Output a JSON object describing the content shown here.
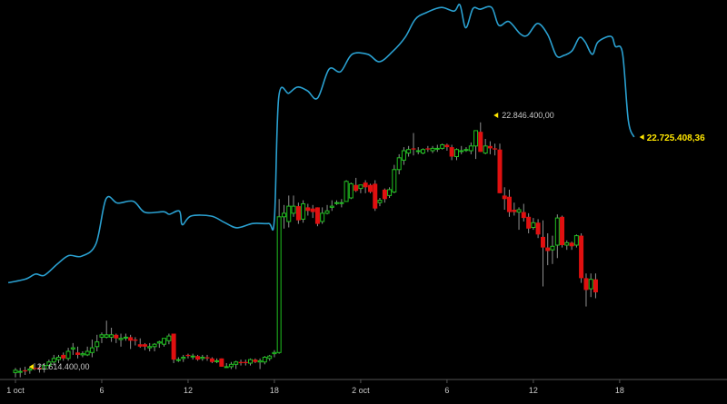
{
  "chart_data": {
    "type": "candlestick",
    "title": "",
    "xlabel": "",
    "ylabel": "",
    "grid": false,
    "legend": "none",
    "x_ticks": [
      "1 oct",
      "6",
      "12",
      "18",
      "2 oct",
      "6",
      "12",
      "18"
    ],
    "x_tick_hours": [
      0,
      6,
      12,
      18,
      24,
      30,
      36,
      42
    ],
    "annotations": [
      {
        "label": "21.614.400,00",
        "kind": "min",
        "hour": 0.5
      },
      {
        "label": "22.846.400,00",
        "kind": "max",
        "hour": 32.8
      }
    ],
    "last_value_label": "22.725.408,36",
    "colors": {
      "background": "#000000",
      "up": "#20c020",
      "down": "#e01010",
      "wick": "#909090",
      "line": "#2aa0d0",
      "label": "#c8c8c8",
      "last_label": "#ffe600",
      "marker": "#ffe600"
    },
    "series": [
      {
        "type": "line",
        "values": [
          [
            -0.5,
            0.42
          ],
          [
            0.7,
            0.48
          ],
          [
            1.4,
            0.56
          ],
          [
            2.0,
            0.54
          ],
          [
            2.9,
            0.72
          ],
          [
            3.7,
            0.86
          ],
          [
            4.6,
            0.85
          ],
          [
            5.6,
            1.05
          ],
          [
            6.3,
            1.78
          ],
          [
            7.1,
            1.71
          ],
          [
            8.2,
            1.74
          ],
          [
            9.0,
            1.56
          ],
          [
            10.3,
            1.57
          ],
          [
            10.7,
            1.53
          ],
          [
            11.4,
            1.58
          ],
          [
            11.6,
            1.36
          ],
          [
            12.2,
            1.5
          ],
          [
            13.6,
            1.5
          ],
          [
            14.5,
            1.4
          ],
          [
            15.4,
            1.31
          ],
          [
            16.5,
            1.38
          ],
          [
            17.6,
            1.38
          ],
          [
            18.0,
            1.44
          ],
          [
            18.3,
            3.42
          ],
          [
            19.0,
            3.49
          ],
          [
            19.6,
            3.59
          ],
          [
            20.3,
            3.53
          ],
          [
            21.0,
            3.41
          ],
          [
            21.8,
            3.88
          ],
          [
            22.6,
            3.84
          ],
          [
            23.4,
            4.12
          ],
          [
            24.5,
            4.12
          ],
          [
            25.3,
            4.0
          ],
          [
            26.2,
            4.16
          ],
          [
            27.1,
            4.4
          ],
          [
            27.8,
            4.69
          ],
          [
            28.6,
            4.8
          ],
          [
            29.6,
            4.88
          ],
          [
            30.5,
            4.82
          ],
          [
            30.9,
            4.92
          ],
          [
            31.3,
            4.55
          ],
          [
            31.8,
            4.86
          ],
          [
            32.3,
            4.85
          ],
          [
            33.1,
            4.88
          ],
          [
            33.6,
            4.59
          ],
          [
            34.3,
            4.65
          ],
          [
            35.1,
            4.45
          ],
          [
            35.6,
            4.43
          ],
          [
            36.3,
            4.62
          ],
          [
            37.0,
            4.44
          ],
          [
            37.6,
            4.1
          ],
          [
            38.1,
            4.1
          ],
          [
            38.7,
            4.18
          ],
          [
            39.2,
            4.39
          ],
          [
            39.6,
            4.32
          ],
          [
            40.1,
            4.12
          ],
          [
            40.5,
            4.32
          ],
          [
            41.4,
            4.41
          ],
          [
            41.7,
            4.25
          ],
          [
            42.2,
            4.14
          ],
          [
            42.6,
            3.05
          ],
          [
            43.0,
            2.78
          ]
        ]
      },
      {
        "type": "candlestick",
        "ohlc_columns": [
          "hour",
          "open",
          "high",
          "low",
          "close"
        ],
        "values": [
          [
            0.0,
            -0.08,
            -0.04,
            -0.12,
            -0.06
          ],
          [
            0.33,
            -0.07,
            -0.04,
            -0.12,
            -0.07
          ],
          [
            0.67,
            -0.06,
            -0.03,
            -0.1,
            -0.07
          ],
          [
            1.0,
            -0.06,
            -0.03,
            -0.09,
            -0.05
          ],
          [
            1.33,
            -0.04,
            0.0,
            -0.06,
            -0.05
          ],
          [
            1.67,
            -0.04,
            -0.01,
            -0.08,
            -0.05
          ],
          [
            2.0,
            -0.05,
            0.0,
            -0.08,
            -0.02
          ],
          [
            2.33,
            -0.02,
            0.03,
            -0.05,
            0.01
          ],
          [
            2.67,
            0.01,
            0.07,
            -0.02,
            0.04
          ],
          [
            3.0,
            0.03,
            0.07,
            0.0,
            0.05
          ],
          [
            3.33,
            0.07,
            0.09,
            0.02,
            0.04
          ],
          [
            3.67,
            0.04,
            0.13,
            0.02,
            0.1
          ],
          [
            4.0,
            0.12,
            0.17,
            0.07,
            0.13
          ],
          [
            4.33,
            0.09,
            0.14,
            0.04,
            0.07
          ],
          [
            4.67,
            0.07,
            0.1,
            0.05,
            0.08
          ],
          [
            5.0,
            0.07,
            0.14,
            0.06,
            0.1
          ],
          [
            5.33,
            0.09,
            0.2,
            0.05,
            0.13
          ],
          [
            5.67,
            0.14,
            0.24,
            0.1,
            0.18
          ],
          [
            6.0,
            0.22,
            0.26,
            0.17,
            0.24
          ],
          [
            6.33,
            0.22,
            0.36,
            0.21,
            0.24
          ],
          [
            6.67,
            0.22,
            0.3,
            0.18,
            0.24
          ],
          [
            7.0,
            0.24,
            0.25,
            0.17,
            0.21
          ],
          [
            7.33,
            0.2,
            0.25,
            0.14,
            0.21
          ],
          [
            7.67,
            0.22,
            0.25,
            0.19,
            0.22
          ],
          [
            8.0,
            0.22,
            0.24,
            0.12,
            0.19
          ],
          [
            8.33,
            0.2,
            0.22,
            0.15,
            0.19
          ],
          [
            8.67,
            0.16,
            0.21,
            0.13,
            0.14
          ],
          [
            9.0,
            0.16,
            0.17,
            0.11,
            0.14
          ],
          [
            9.33,
            0.13,
            0.17,
            0.1,
            0.14
          ],
          [
            9.67,
            0.14,
            0.17,
            0.1,
            0.16
          ],
          [
            10.0,
            0.17,
            0.19,
            0.13,
            0.18
          ],
          [
            10.33,
            0.16,
            0.2,
            0.14,
            0.21
          ],
          [
            10.67,
            0.19,
            0.25,
            0.16,
            0.23
          ],
          [
            11.0,
            0.25,
            0.25,
            0.0,
            0.03
          ],
          [
            11.33,
            0.03,
            0.05,
            0.01,
            0.03
          ],
          [
            11.67,
            0.04,
            0.07,
            0.01,
            0.05
          ],
          [
            12.0,
            0.07,
            0.08,
            0.04,
            0.06
          ],
          [
            12.33,
            0.06,
            0.08,
            0.03,
            0.06
          ],
          [
            12.67,
            0.06,
            0.07,
            0.02,
            0.03
          ],
          [
            13.0,
            0.04,
            0.07,
            0.02,
            0.05
          ],
          [
            13.33,
            0.05,
            0.07,
            0.02,
            0.04
          ],
          [
            13.67,
            0.04,
            0.05,
            0.0,
            0.01
          ],
          [
            14.0,
            0.02,
            0.04,
            0.0,
            0.02
          ],
          [
            14.33,
            0.04,
            0.04,
            -0.03,
            -0.03
          ],
          [
            14.67,
            -0.03,
            0.0,
            -0.03,
            -0.03
          ],
          [
            15.0,
            -0.03,
            0.01,
            -0.05,
            -0.01
          ],
          [
            15.33,
            -0.01,
            0.02,
            -0.05,
            0.01
          ],
          [
            15.67,
            0.01,
            0.03,
            -0.02,
            0.0
          ],
          [
            16.0,
            0.01,
            0.03,
            -0.02,
            0.0
          ],
          [
            16.33,
            0.0,
            0.04,
            -0.02,
            0.03
          ],
          [
            16.67,
            0.03,
            0.04,
            0.0,
            0.01
          ],
          [
            17.0,
            0.01,
            0.04,
            -0.05,
            0.02
          ],
          [
            17.33,
            0.01,
            0.06,
            -0.01,
            0.05
          ],
          [
            17.67,
            0.04,
            0.07,
            0.02,
            0.06
          ],
          [
            18.0,
            0.08,
            0.11,
            0.05,
            0.09
          ],
          [
            18.33,
            0.09,
            1.39,
            0.08,
            1.24
          ],
          [
            18.67,
            1.24,
            1.34,
            1.14,
            1.27
          ],
          [
            19.0,
            1.2,
            1.42,
            1.15,
            1.33
          ],
          [
            19.33,
            1.27,
            1.42,
            1.24,
            1.33
          ],
          [
            19.67,
            1.33,
            1.36,
            1.18,
            1.21
          ],
          [
            20.0,
            1.22,
            1.38,
            1.19,
            1.35
          ],
          [
            20.33,
            1.32,
            1.35,
            1.25,
            1.29
          ],
          [
            20.67,
            1.31,
            1.34,
            1.23,
            1.28
          ],
          [
            21.0,
            1.32,
            1.32,
            1.16,
            1.18
          ],
          [
            21.33,
            1.2,
            1.32,
            1.18,
            1.27
          ],
          [
            21.67,
            1.27,
            1.34,
            1.26,
            1.29
          ],
          [
            22.0,
            1.32,
            1.38,
            1.29,
            1.33
          ],
          [
            22.33,
            1.36,
            1.38,
            1.34,
            1.36
          ],
          [
            22.67,
            1.36,
            1.39,
            1.32,
            1.36
          ],
          [
            23.0,
            1.37,
            1.55,
            1.37,
            1.54
          ],
          [
            23.33,
            1.4,
            1.53,
            1.39,
            1.52
          ],
          [
            23.67,
            1.51,
            1.57,
            1.45,
            1.46
          ],
          [
            24.0,
            1.48,
            1.51,
            1.44,
            1.51
          ],
          [
            24.33,
            1.53,
            1.55,
            1.44,
            1.49
          ],
          [
            24.67,
            1.51,
            1.52,
            1.44,
            1.45
          ],
          [
            25.0,
            1.52,
            1.55,
            1.29,
            1.31
          ],
          [
            25.33,
            1.36,
            1.4,
            1.33,
            1.38
          ],
          [
            25.67,
            1.47,
            1.48,
            1.36,
            1.39
          ],
          [
            26.0,
            1.42,
            1.49,
            1.4,
            1.47
          ],
          [
            26.33,
            1.45,
            1.68,
            1.44,
            1.64
          ],
          [
            26.67,
            1.64,
            1.77,
            1.6,
            1.74
          ],
          [
            27.0,
            1.72,
            1.83,
            1.68,
            1.8
          ],
          [
            27.33,
            1.78,
            1.84,
            1.75,
            1.81
          ],
          [
            27.67,
            1.82,
            1.95,
            1.76,
            1.81
          ],
          [
            28.0,
            1.8,
            1.83,
            1.77,
            1.8
          ],
          [
            28.33,
            1.78,
            1.82,
            1.77,
            1.81
          ],
          [
            28.67,
            1.82,
            1.84,
            1.79,
            1.81
          ],
          [
            29.0,
            1.8,
            1.84,
            1.78,
            1.82
          ],
          [
            29.33,
            1.82,
            1.85,
            1.79,
            1.82
          ],
          [
            29.67,
            1.82,
            1.86,
            1.81,
            1.85
          ],
          [
            30.0,
            1.85,
            1.86,
            1.8,
            1.83
          ],
          [
            30.33,
            1.83,
            1.85,
            1.72,
            1.75
          ],
          [
            30.67,
            1.75,
            1.82,
            1.72,
            1.81
          ],
          [
            31.0,
            1.8,
            1.84,
            1.77,
            1.8
          ],
          [
            31.33,
            1.81,
            1.83,
            1.79,
            1.81
          ],
          [
            31.67,
            1.8,
            1.87,
            1.77,
            1.84
          ],
          [
            32.0,
            1.84,
            1.97,
            1.73,
            1.97
          ],
          [
            32.33,
            1.96,
            2.04,
            1.79,
            1.79
          ],
          [
            32.67,
            1.78,
            1.9,
            1.77,
            1.84
          ],
          [
            33.0,
            1.84,
            1.88,
            1.77,
            1.82
          ],
          [
            33.33,
            1.82,
            1.86,
            1.76,
            1.81
          ],
          [
            33.67,
            1.81,
            1.86,
            1.44,
            1.44
          ],
          [
            34.0,
            1.42,
            1.49,
            1.3,
            1.39
          ],
          [
            34.33,
            1.41,
            1.47,
            1.24,
            1.28
          ],
          [
            34.67,
            1.3,
            1.36,
            1.25,
            1.28
          ],
          [
            35.0,
            1.28,
            1.32,
            1.13,
            1.3
          ],
          [
            35.33,
            1.28,
            1.35,
            1.2,
            1.23
          ],
          [
            35.67,
            1.24,
            1.27,
            1.1,
            1.14
          ],
          [
            36.0,
            1.15,
            1.23,
            1.13,
            1.19
          ],
          [
            36.33,
            1.19,
            1.22,
            1.06,
            1.09
          ],
          [
            36.67,
            1.07,
            1.21,
            0.65,
            0.98
          ],
          [
            37.0,
            0.98,
            1.1,
            0.83,
            0.95
          ],
          [
            37.33,
            0.96,
            1.08,
            0.84,
            0.99
          ],
          [
            37.67,
            1.0,
            1.26,
            0.89,
            1.23
          ],
          [
            38.0,
            1.24,
            1.25,
            0.98,
            1.0
          ],
          [
            38.33,
            1.0,
            1.04,
            0.96,
            1.02
          ],
          [
            38.67,
            1.02,
            1.03,
            0.96,
            0.99
          ],
          [
            39.0,
            1.0,
            1.09,
            0.98,
            1.08
          ],
          [
            39.33,
            1.08,
            1.1,
            0.68,
            0.72
          ],
          [
            39.67,
            0.72,
            0.76,
            0.48,
            0.62
          ],
          [
            40.0,
            0.63,
            0.76,
            0.56,
            0.71
          ],
          [
            40.33,
            0.71,
            0.76,
            0.55,
            0.6
          ]
        ]
      }
    ]
  }
}
